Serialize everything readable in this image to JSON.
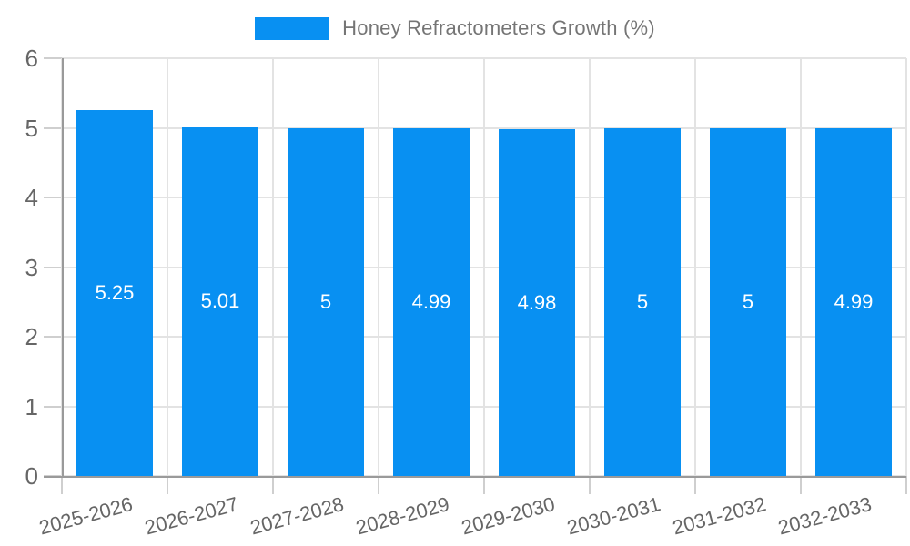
{
  "chart_data": {
    "type": "bar",
    "title": "Honey Refractometers Growth (%)",
    "categories": [
      "2025-2026",
      "2026-2027",
      "2027-2028",
      "2028-2029",
      "2029-2030",
      "2030-2031",
      "2031-2032",
      "2032-2033"
    ],
    "values": [
      5.25,
      5.01,
      5,
      4.99,
      4.98,
      5,
      5,
      4.99
    ],
    "value_labels": [
      "5.25",
      "5.01",
      "5",
      "4.99",
      "4.98",
      "5",
      "5",
      "4.99"
    ],
    "xlabel": "",
    "ylabel": "",
    "ylim": [
      0,
      6
    ],
    "yticks": [
      0,
      1,
      2,
      3,
      4,
      5,
      6
    ],
    "grid": true,
    "legend_position": "top-center",
    "colors": {
      "bar": "#0890f2",
      "grid": "#e3e3e3",
      "axis": "#9a9a9a",
      "tick": "#cfcfcf",
      "axis_text": "#666666",
      "legend_text": "#757575",
      "value_text": "#ffffff",
      "background": "#ffffff"
    }
  }
}
